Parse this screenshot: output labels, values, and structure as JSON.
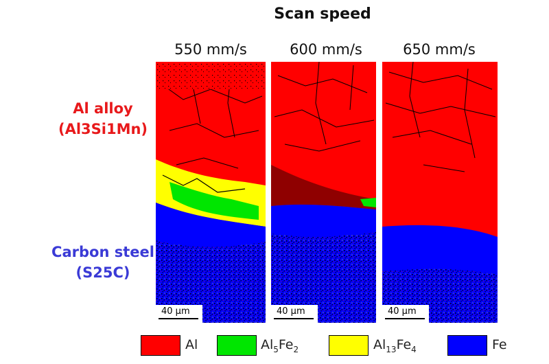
{
  "title": "Scan speed",
  "speeds": [
    "550 mm/s",
    "600 mm/s",
    "650 mm/s"
  ],
  "side_labels": {
    "top_line1": "Al alloy",
    "top_line2": "(Al3Si1Mn)",
    "bottom_line1": "Carbon steel",
    "bottom_line2": "(S25C)"
  },
  "scale_bar": "40 μm",
  "legend": [
    {
      "label": "Al",
      "color": "#ff0000"
    },
    {
      "label_main": "Al",
      "sub1": "5",
      "mid": "Fe",
      "sub2": "2",
      "color": "#00e600"
    },
    {
      "label_main": "Al",
      "sub1": "13",
      "mid": "Fe",
      "sub2": "4",
      "color": "#ffff00"
    },
    {
      "label": "Fe",
      "color": "#0000ff"
    }
  ],
  "colors": {
    "al": "#ff0000",
    "al5fe2": "#00e600",
    "al13fe4": "#ffff00",
    "fe": "#0000ff",
    "top_label": "#e8191b",
    "bottom_label": "#3a3ad6"
  }
}
